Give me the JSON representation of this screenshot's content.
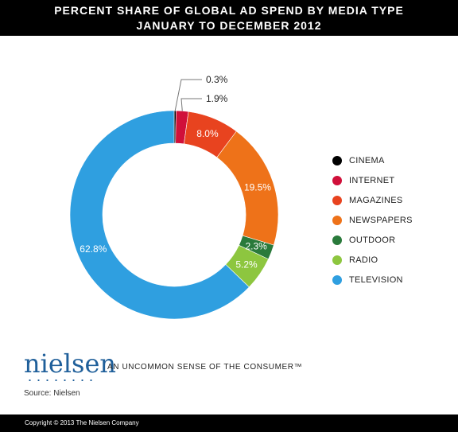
{
  "header": {
    "title_line1": "PERCENT SHARE OF GLOBAL AD SPEND BY MEDIA TYPE",
    "title_line2": "JANUARY TO DECEMBER 2012"
  },
  "chart_data": {
    "type": "pie",
    "donut": true,
    "title": "PERCENT SHARE OF GLOBAL AD SPEND BY MEDIA TYPE",
    "subtitle": "JANUARY TO DECEMBER 2012",
    "legend_position": "right",
    "slices": [
      {
        "label": "CINEMA",
        "value": 0.3,
        "value_label": "0.3%",
        "color": "#000000"
      },
      {
        "label": "INTERNET",
        "value": 1.9,
        "value_label": "1.9%",
        "color": "#d0103a"
      },
      {
        "label": "MAGAZINES",
        "value": 8.0,
        "value_label": "8.0%",
        "color": "#e8431f"
      },
      {
        "label": "NEWSPAPERS",
        "value": 19.5,
        "value_label": "19.5%",
        "color": "#ee7219"
      },
      {
        "label": "OUTDOOR",
        "value": 2.3,
        "value_label": "2.3%",
        "color": "#2a7a3b"
      },
      {
        "label": "RADIO",
        "value": 5.2,
        "value_label": "5.2%",
        "color": "#8dc63f"
      },
      {
        "label": "TELEVISION",
        "value": 62.8,
        "value_label": "62.8%",
        "color": "#2f9fe0"
      }
    ]
  },
  "branding": {
    "logo": "nielsen",
    "tagline": "AN UNCOMMON SENSE OF THE CONSUMER™"
  },
  "source": "Source: Nielsen",
  "footer": "Copyright © 2013 The Nielsen Company"
}
